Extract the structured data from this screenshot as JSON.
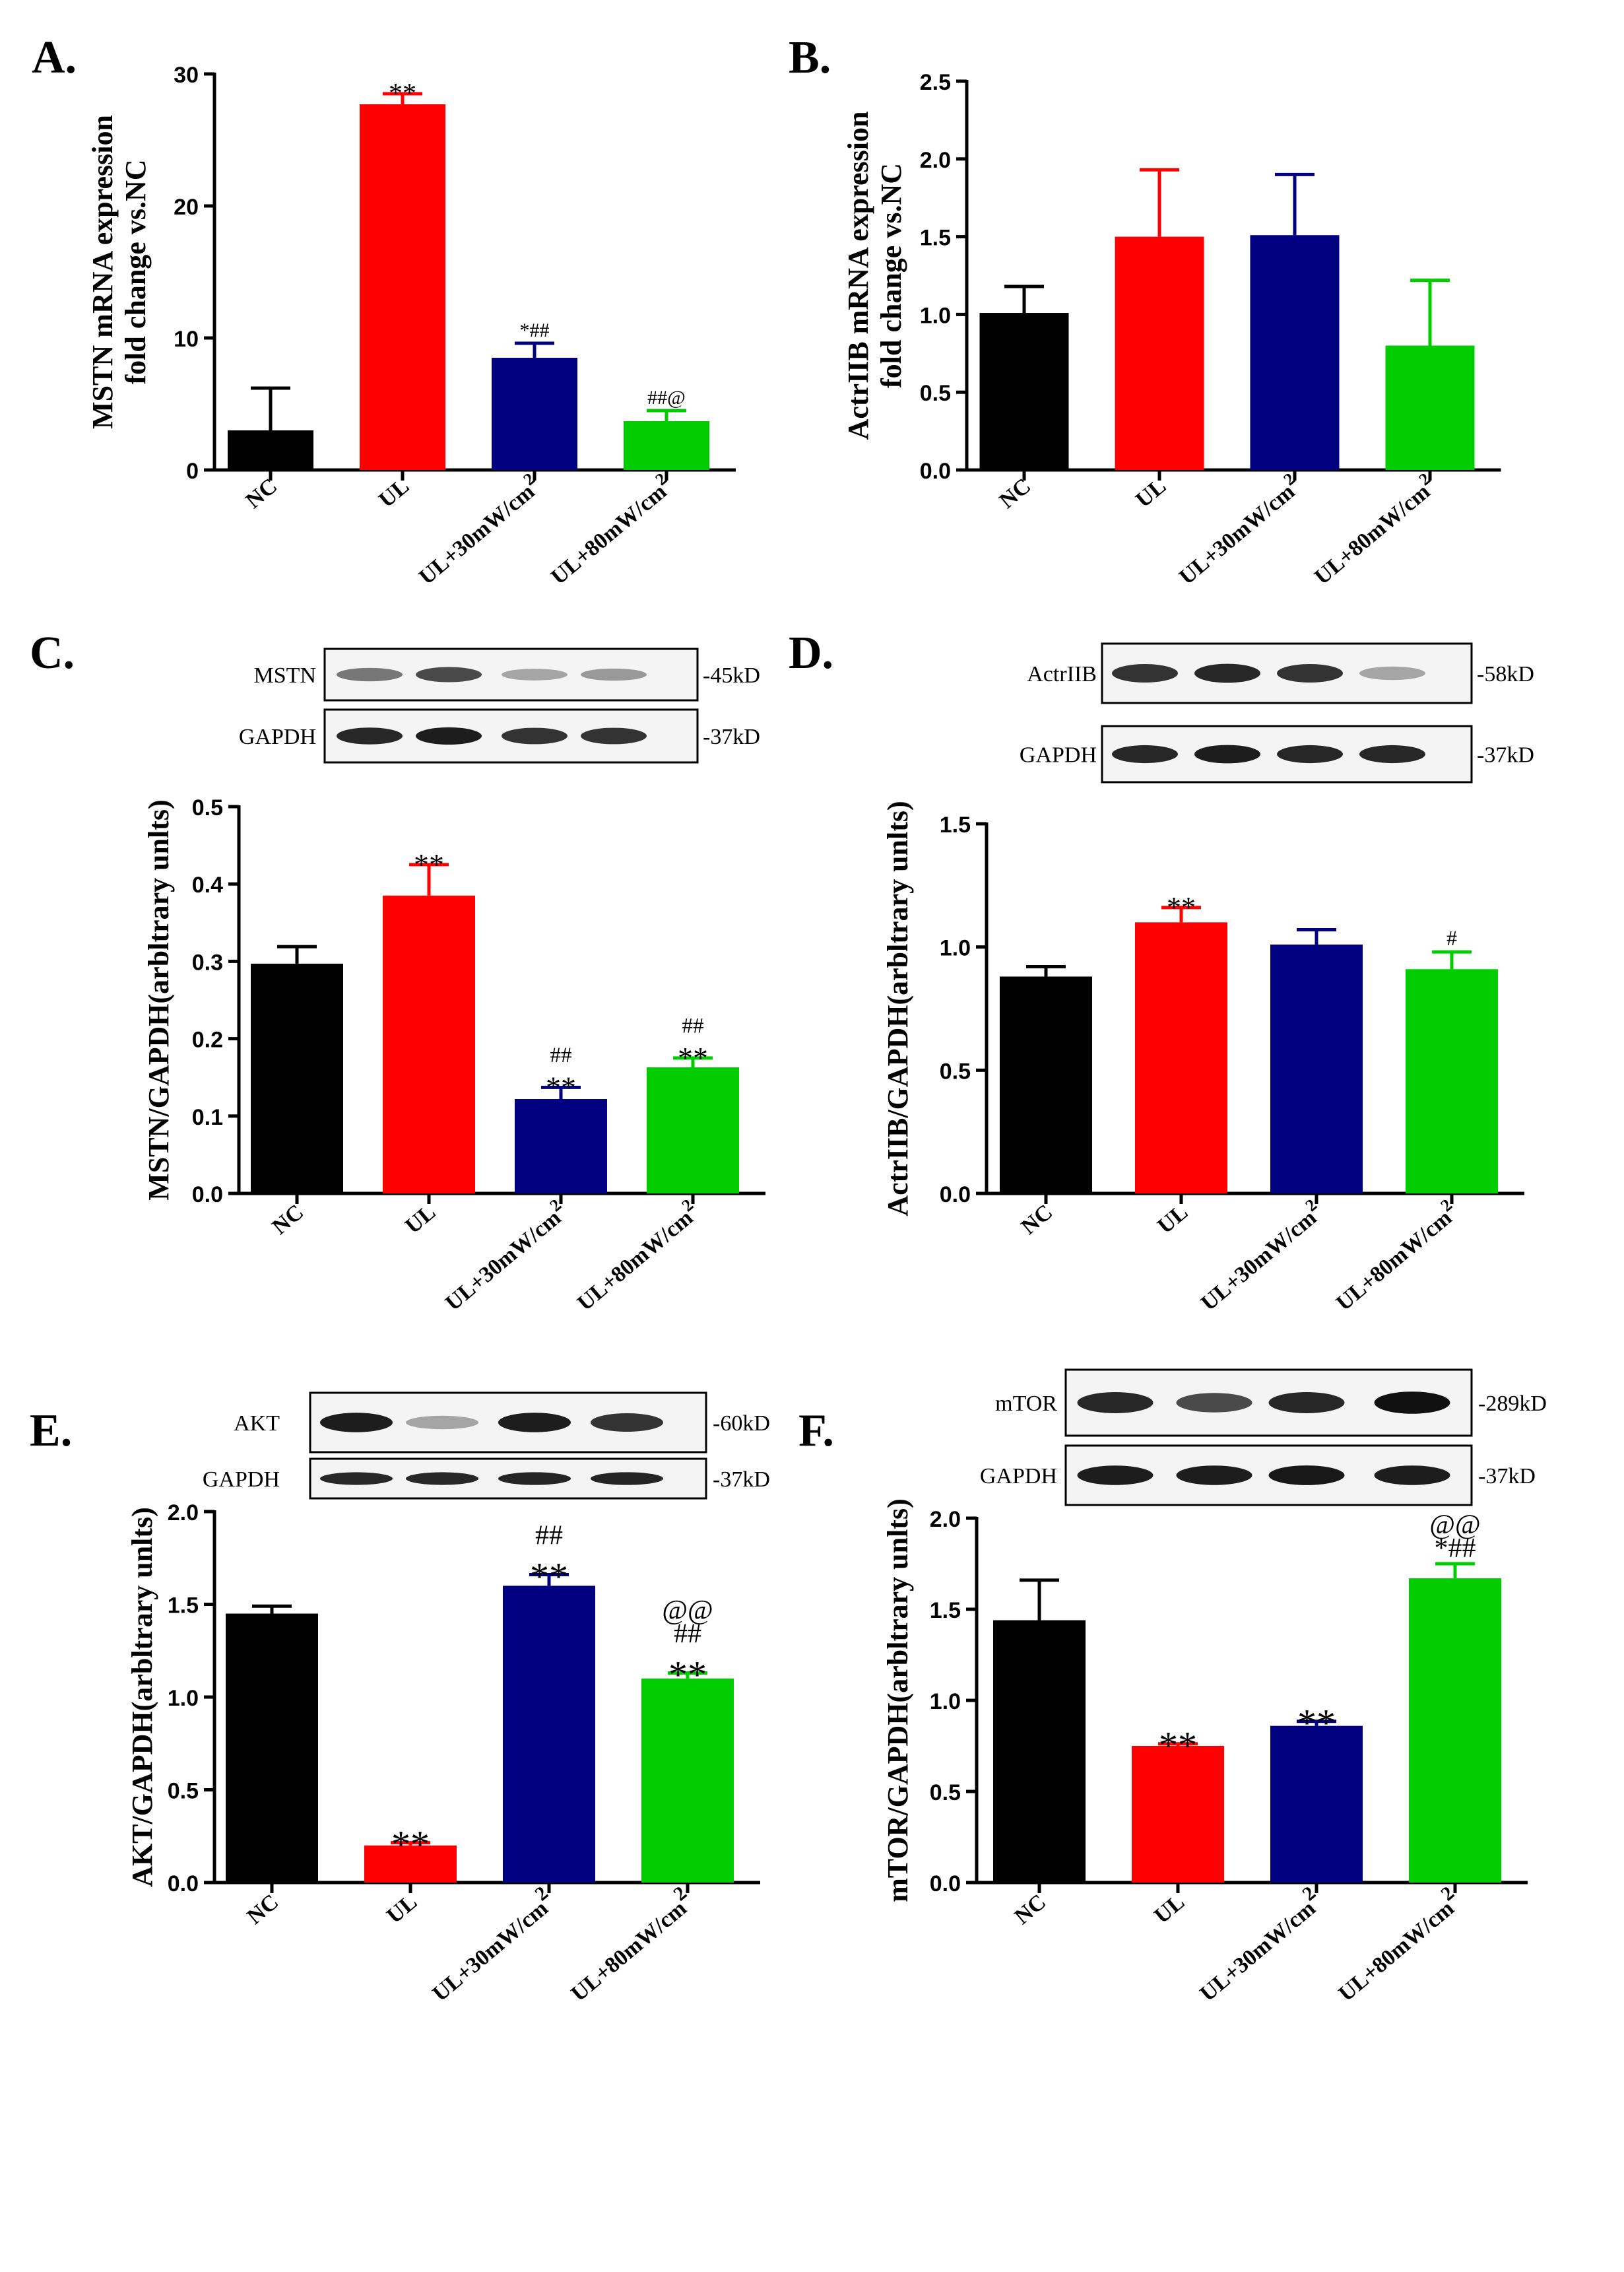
{
  "colors": {
    "NC": "#000000",
    "UL": "#ff0000",
    "UL30": "#000080",
    "UL80": "#00cc00"
  },
  "chart_data": [
    {
      "id": "A",
      "type": "bar",
      "letter": "A.",
      "ylabel": [
        "MSTN mRNA expression",
        "fold change vs.NC"
      ],
      "categories": [
        "NC",
        "UL",
        "UL+30mW/cm2",
        "UL+80mW/cm2"
      ],
      "values": [
        3.0,
        27.7,
        8.5,
        3.7
      ],
      "errors": [
        3.2,
        0.8,
        1.1,
        0.8
      ],
      "ylim": [
        0,
        30
      ],
      "ticks": [
        "0",
        "10",
        "20",
        "30"
      ],
      "tick_values": [
        0,
        10,
        20,
        30
      ],
      "annotations": [
        "",
        "**",
        "*##",
        "##@"
      ]
    },
    {
      "id": "B",
      "type": "bar",
      "letter": "B.",
      "ylabel": [
        "ActrIIB mRNA expression",
        "fold change vs.NC"
      ],
      "categories": [
        "NC",
        "UL",
        "UL+30mW/cm2",
        "UL+80mW/cm2"
      ],
      "values": [
        1.01,
        1.5,
        1.51,
        0.8
      ],
      "errors": [
        0.17,
        0.43,
        0.39,
        0.42
      ],
      "ylim": [
        0,
        2.5
      ],
      "ticks": [
        "0.0",
        "0.5",
        "1.0",
        "1.5",
        "2.0",
        "2.5"
      ],
      "tick_values": [
        0,
        0.5,
        1.0,
        1.5,
        2.0,
        2.5
      ],
      "annotations": [
        "",
        "",
        "",
        ""
      ]
    },
    {
      "id": "C",
      "type": "bar",
      "letter": "C.",
      "ylabel": [
        "MSTN/GAPDH(arbltrary unlts)"
      ],
      "categories": [
        "NC",
        "UL",
        "UL+30mW/cm2",
        "UL+80mW/cm2"
      ],
      "values": [
        0.297,
        0.385,
        0.122,
        0.163
      ],
      "errors": [
        0.022,
        0.04,
        0.015,
        0.012
      ],
      "ylim": [
        0,
        0.5
      ],
      "ticks": [
        "0.0",
        "0.1",
        "0.2",
        "0.3",
        "0.4",
        "0.5"
      ],
      "tick_values": [
        0,
        0.1,
        0.2,
        0.3,
        0.4,
        0.5
      ],
      "annotations": [
        "",
        "**",
        "##\n**",
        "##\n**"
      ],
      "blots": [
        {
          "name": "MSTN",
          "kd": "-45kD"
        },
        {
          "name": "GAPDH",
          "kd": "-37kD"
        }
      ]
    },
    {
      "id": "D",
      "type": "bar",
      "letter": "D.",
      "ylabel": [
        "ActrIIB/GAPDH(arbltrary unlts)"
      ],
      "categories": [
        "NC",
        "UL",
        "UL+30mW/cm2",
        "UL+80mW/cm2"
      ],
      "values": [
        0.88,
        1.1,
        1.01,
        0.91
      ],
      "errors": [
        0.04,
        0.06,
        0.06,
        0.07
      ],
      "ylim": [
        0,
        1.5
      ],
      "ticks": [
        "0.0",
        "0.5",
        "1.0",
        "1.5"
      ],
      "tick_values": [
        0,
        0.5,
        1.0,
        1.5
      ],
      "annotations": [
        "",
        "**",
        "",
        "#"
      ],
      "blots": [
        {
          "name": "ActrIIB",
          "kd": "-58kD"
        },
        {
          "name": "GAPDH",
          "kd": "-37kD"
        }
      ]
    },
    {
      "id": "E",
      "type": "bar",
      "letter": "E.",
      "ylabel": [
        "AKT/GAPDH(arbltrary unlts)"
      ],
      "categories": [
        "NC",
        "UL",
        "UL+30mW/cm2",
        "UL+80mW/cm2"
      ],
      "values": [
        1.45,
        0.2,
        1.6,
        1.1
      ],
      "errors": [
        0.04,
        0.015,
        0.06,
        0.03
      ],
      "ylim": [
        0,
        2.0
      ],
      "ticks": [
        "0.0",
        "0.5",
        "1.0",
        "1.5",
        "2.0"
      ],
      "tick_values": [
        0,
        0.5,
        1.0,
        1.5,
        2.0
      ],
      "annotations": [
        "",
        "**",
        "##\n**",
        "@@\n##\n**"
      ],
      "blots": [
        {
          "name": "AKT",
          "kd": "-60kD"
        },
        {
          "name": "GAPDH",
          "kd": "-37kD"
        }
      ]
    },
    {
      "id": "F",
      "type": "bar",
      "letter": "F.",
      "ylabel": [
        "mTOR/GAPDH(arbltrary unlts)"
      ],
      "categories": [
        "NC",
        "UL",
        "UL+30mW/cm2",
        "UL+80mW/cm2"
      ],
      "values": [
        1.44,
        0.75,
        0.86,
        1.67
      ],
      "errors": [
        0.22,
        0.012,
        0.025,
        0.08
      ],
      "ylim": [
        0,
        2.0
      ],
      "ticks": [
        "0.0",
        "0.5",
        "1.0",
        "1.5",
        "2.0"
      ],
      "tick_values": [
        0,
        0.5,
        1.0,
        1.5,
        2.0
      ],
      "annotations": [
        "",
        "**",
        "**",
        "@@\n*##"
      ],
      "blots": [
        {
          "name": "mTOR",
          "kd": "-289kD"
        },
        {
          "name": "GAPDH",
          "kd": "-37kD"
        }
      ]
    }
  ]
}
